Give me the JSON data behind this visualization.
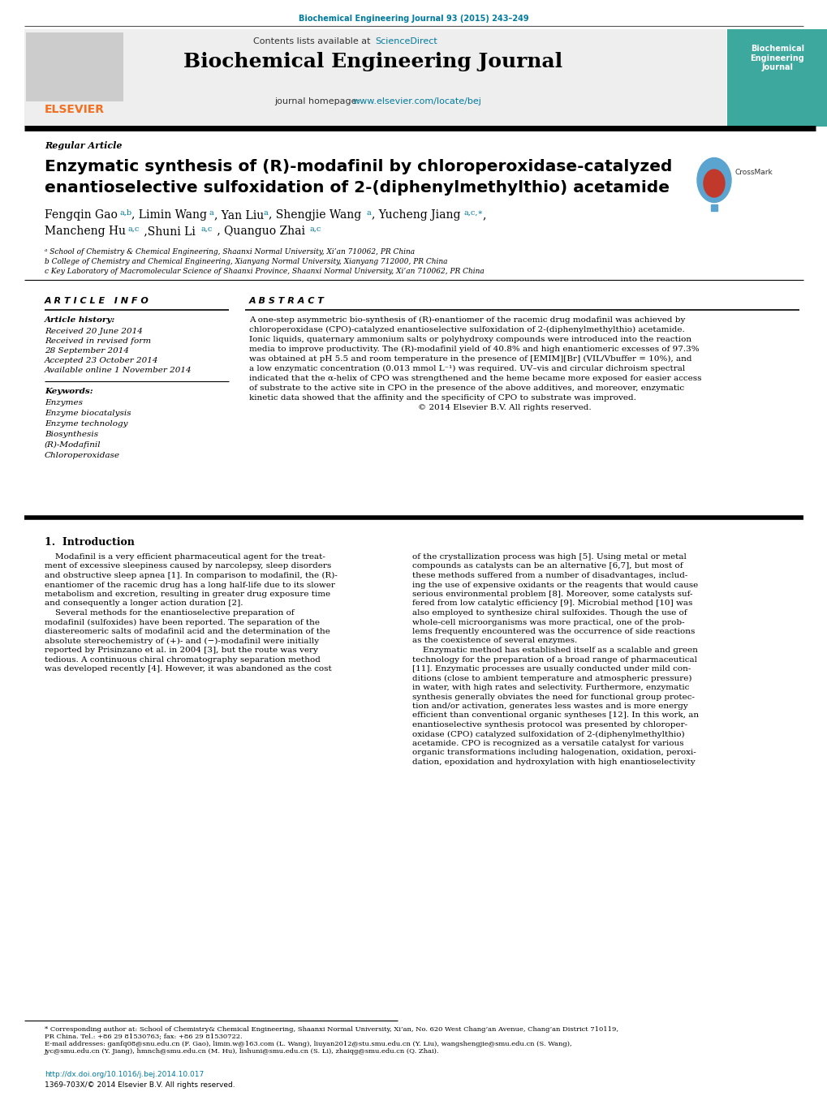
{
  "page_citation": "Biochemical Engineering Journal 93 (2015) 243–249",
  "citation_color": "#007B9E",
  "journal_title": "Biochemical Engineering Journal",
  "contents_prefix": "Contents lists available at ",
  "sciencedirect_text": "ScienceDirect",
  "sciencedirect_color": "#007B9E",
  "homepage_prefix": "journal homepage: ",
  "homepage_url": "www.elsevier.com/locate/bej",
  "homepage_color": "#007B9E",
  "elsevier_text": "ELSEVIER",
  "elsevier_color": "#F37021",
  "journal_cover_text": "Biochemical\nEngineering\nJournal",
  "journal_cover_bg": "#3DA89E",
  "article_type": "Regular Article",
  "title_line1": "Enzymatic synthesis of (R)-modafinil by chloroperoxidase-catalyzed",
  "title_line2": "enantioselective sulfoxidation of 2-(diphenylmethylthio) acetamide",
  "crossmark_text": "CrossMark",
  "authors_line1": "Fengqin Gao",
  "authors_line1_super": "a,b",
  "authors_rest1": ", Limin Wang",
  "authors_rest1_super": "a",
  "authors_mid1": ", Yan Liu",
  "authors_mid1_super": "a",
  "authors_mid2": ", Shengjie Wang",
  "authors_mid2_super": "a",
  "authors_mid3": ", Yucheng Jiang",
  "authors_mid3_super": "a,c,∗",
  "authors_mid3_end": ",",
  "authors_line2": "Mancheng Hu",
  "authors_line2_super": "a,c",
  "authors_rest2": " ,Shuni Li",
  "authors_rest2_super": "a,c",
  "authors_end": " , Quanguo Zhai",
  "authors_end_super": "a,c",
  "affil_a": "ᵃ School of Chemistry & Chemical Engineering, Shaanxi Normal University, Xi’an 710062, PR China",
  "affil_b": "b College of Chemistry and Chemical Engineering, Xianyang Normal University, Xianyang 712000, PR China",
  "affil_c": "c Key Laboratory of Macromolecular Science of Shaanxi Province, Shaanxi Normal University, Xi’an 710062, PR China",
  "article_info_header": "A R T I C L E   I N F O",
  "abstract_header": "A B S T R A C T",
  "article_history_label": "Article history:",
  "received_text": "Received 20 June 2014",
  "revised_text1": "Received in revised form",
  "revised_text2": "28 September 2014",
  "accepted_text": "Accepted 23 October 2014",
  "available_text": "Available online 1 November 2014",
  "keywords_label": "Keywords:",
  "keywords": [
    "Enzymes",
    "Enzyme biocatalysis",
    "Enzyme technology",
    "Biosynthesis",
    "(R)-Modafinil",
    "Chloroperoxidase"
  ],
  "abstract_lines": [
    "A one-step asymmetric bio-synthesis of (R)-enantiomer of the racemic drug modafinil was achieved by",
    "chloroperoxidase (CPO)-catalyzed enantioselective sulfoxidation of 2-(diphenylmethylthio) acetamide.",
    "Ionic liquids, quaternary ammonium salts or polyhydroxy compounds were introduced into the reaction",
    "media to improve productivity. The (R)-modafinil yield of 40.8% and high enantiomeric excesses of 97.3%",
    "was obtained at pH 5.5 and room temperature in the presence of [EMIM][Br] (VIL/Vbuffer = 10%), and",
    "a low enzymatic concentration (0.013 mmol L⁻¹) was required. UV–vis and circular dichroism spectral",
    "indicated that the α-helix of CPO was strengthened and the heme became more exposed for easier access",
    "of substrate to the active site in CPO in the presence of the above additives, and moreover, enzymatic",
    "kinetic data showed that the affinity and the specificity of CPO to substrate was improved.",
    "                                                                © 2014 Elsevier B.V. All rights reserved."
  ],
  "intro_header": "1.  Introduction",
  "intro_col1_lines": [
    "    Modafinil is a very efficient pharmaceutical agent for the treat-",
    "ment of excessive sleepiness caused by narcolepsy, sleep disorders",
    "and obstructive sleep apnea [1]. In comparison to modafinil, the (R)-",
    "enantiomer of the racemic drug has a long half-life due to its slower",
    "metabolism and excretion, resulting in greater drug exposure time",
    "and consequently a longer action duration [2].",
    "    Several methods for the enantioselective preparation of",
    "modafinil (sulfoxides) have been reported. The separation of the",
    "diastereomeric salts of modafinil acid and the determination of the",
    "absolute stereochemistry of (+)- and (−)-modafinil were initially",
    "reported by Prisinzano et al. in 2004 [3], but the route was very",
    "tedious. A continuous chiral chromatography separation method",
    "was developed recently [4]. However, it was abandoned as the cost"
  ],
  "intro_col2_lines": [
    "of the crystallization process was high [5]. Using metal or metal",
    "compounds as catalysts can be an alternative [6,7], but most of",
    "these methods suffered from a number of disadvantages, includ-",
    "ing the use of expensive oxidants or the reagents that would cause",
    "serious environmental problem [8]. Moreover, some catalysts suf-",
    "fered from low catalytic efficiency [9]. Microbial method [10] was",
    "also employed to synthesize chiral sulfoxides. Though the use of",
    "whole-cell microorganisms was more practical, one of the prob-",
    "lems frequently encountered was the occurrence of side reactions",
    "as the coexistence of several enzymes.",
    "    Enzymatic method has established itself as a scalable and green",
    "technology for the preparation of a broad range of pharmaceutical",
    "[11]. Enzymatic processes are usually conducted under mild con-",
    "ditions (close to ambient temperature and atmospheric pressure)",
    "in water, with high rates and selectivity. Furthermore, enzymatic",
    "synthesis generally obviates the need for functional group protec-",
    "tion and/or activation, generates less wastes and is more energy",
    "efficient than conventional organic syntheses [12]. In this work, an",
    "enantioselective synthesis protocol was presented by chloroper-",
    "oxidase (CPO) catalyzed sulfoxidation of 2-(diphenylmethylthio)",
    "acetamide. CPO is recognized as a versatile catalyst for various",
    "organic transformations including halogenation, oxidation, peroxi-",
    "dation, epoxidation and hydroxylation with high enantioselectivity"
  ],
  "footnote_lines": [
    "* Corresponding author at: School of Chemistry& Chemical Engineering, Shaanxi Normal University, Xi’an, No. 620 West Chang’an Avenue, Chang’an District 710119,",
    "PR China. Tel.: +86 29 81530763; fax: +86 29 81530722.",
    "E-mail addresses: ganfq08@snu.edu.cn (F. Gao), limin.w@163.com (L. Wang), liuyan2012@stu.smu.edu.cn (Y. Liu), wangshengjie@smu.edu.cn (S. Wang),",
    "jyc@smu.edu.cn (Y. Jiang), hmnch@smu.edu.cn (M. Hu), lishuni@smu.edu.cn (S. Li), zhaiqg@smu.edu.cn (Q. Zhai)."
  ],
  "doi_text": "http://dx.doi.org/10.1016/j.bej.2014.10.017",
  "issn_text": "1369-703X/© 2014 Elsevier B.V. All rights reserved.",
  "header_gray": "#EEEEEE",
  "thick_rule_color": "#231F20",
  "thin_rule_color": "#231F20"
}
